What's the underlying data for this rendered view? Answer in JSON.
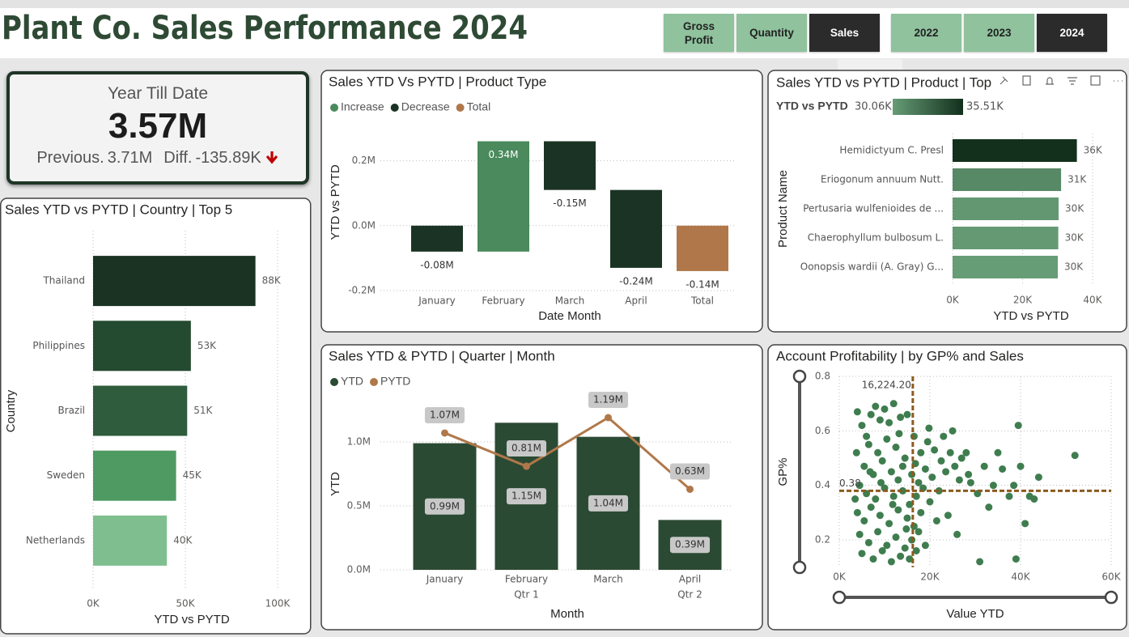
{
  "header": {
    "title": "Plant Co. Sales Performance 2024"
  },
  "slicer_colors": {
    "selected": "#2b2b2b",
    "unselected": "#8fc29d"
  },
  "slicers": [
    {
      "items": [
        {
          "label": "Gross Profit",
          "selected": false
        },
        {
          "label": "Quantity",
          "selected": false
        },
        {
          "label": "Sales",
          "selected": true
        }
      ]
    },
    {
      "items": [
        {
          "label": "2022",
          "selected": false
        },
        {
          "label": "2023",
          "selected": false
        },
        {
          "label": "2024",
          "selected": true
        }
      ]
    }
  ],
  "kpi": {
    "title": "Year Till Date",
    "value": "3.57M",
    "previous_label": "Previous.",
    "previous": "3.71M",
    "diff_label": "Diff.",
    "diff": "-135.89K"
  },
  "chart_data": [
    {
      "type": "hbar",
      "title": "Sales YTD vs PYTD | Country | Top 5",
      "categories": [
        "Thailand",
        "Philippines",
        "Brazil",
        "Sweden",
        "Netherlands"
      ],
      "values": [
        88000,
        53000,
        51000,
        45000,
        40000
      ],
      "value_labels": [
        "88K",
        "53K",
        "51K",
        "45K",
        "40K"
      ],
      "colors": [
        "#1a3322",
        "#244a30",
        "#2f5c3c",
        "#4e9a62",
        "#7fbf8f"
      ],
      "value_label_colors": [
        "#333333",
        "#333333",
        "#333333",
        "#4e8a5e",
        "#7fbf8f"
      ],
      "xlim": [
        0,
        100000
      ],
      "xticks": [
        {
          "value": 0,
          "label": "0K"
        },
        {
          "value": 50000,
          "label": "50K"
        },
        {
          "value": 100000,
          "label": "100K"
        }
      ],
      "xlabel": "YTD vs PYTD",
      "ylabel": "Country",
      "grid": true
    },
    {
      "type": "waterfall",
      "title": "Sales YTD Vs PYTD | Product Type",
      "legend": [
        {
          "name": "Increase",
          "color": "#4a8a5c"
        },
        {
          "name": "Decrease",
          "color": "#1b3324"
        },
        {
          "name": "Total",
          "color": "#b0784a"
        }
      ],
      "categories": [
        "January",
        "February",
        "March",
        "April",
        "Total"
      ],
      "values": [
        -80000,
        340000,
        -150000,
        -240000,
        -140000
      ],
      "value_labels": [
        "-0.08M",
        "0.34M",
        "-0.15M",
        "-0.24M",
        "-0.14M"
      ],
      "is_total": [
        false,
        false,
        false,
        false,
        true
      ],
      "ylim": [
        -230000,
        300000
      ],
      "yticks": [
        {
          "value": -200000,
          "label": "-0.2M"
        },
        {
          "value": 0,
          "label": "0.0M"
        },
        {
          "value": 200000,
          "label": "0.2M"
        }
      ],
      "xlabel": "Date Month",
      "ylabel": "YTD vs PYTD",
      "grid": true
    },
    {
      "type": "hbar",
      "title": "Sales YTD vs PYTD | Product | Top",
      "color_scale": {
        "label": "YTD vs PYTD",
        "min": 30060,
        "max": 35510,
        "min_label": "30.06K",
        "max_label": "35.51K",
        "colors": [
          "#669c76",
          "#12301c"
        ]
      },
      "categories": [
        "Hemidictyum C. Presl",
        "Eriogonum annuum Nutt.",
        "Pertusaria wulfenioides de ...",
        "Chaerophyllum bulbosum L.",
        "Oonopsis wardii (A. Gray) G..."
      ],
      "values": [
        35510,
        31000,
        30300,
        30200,
        30060
      ],
      "value_labels": [
        "36K",
        "31K",
        "30K",
        "30K",
        "30K"
      ],
      "value_label_colors": [
        "#333333",
        "#333333",
        "#333333",
        "#4e8a5e",
        "#4e8a5e"
      ],
      "xlim": [
        0,
        40000
      ],
      "xticks": [
        {
          "value": 0,
          "label": "0K"
        },
        {
          "value": 20000,
          "label": "20K"
        },
        {
          "value": 40000,
          "label": "40K"
        }
      ],
      "xlabel": "YTD vs PYTD",
      "ylabel": "Product Name",
      "grid": true
    },
    {
      "type": "combo",
      "title": "Sales YTD & PYTD | Quarter | Month",
      "categories": [
        "January",
        "February",
        "March",
        "April"
      ],
      "groups": [
        "Qtr 1",
        "Qtr 1",
        "Qtr 1",
        "Qtr 2"
      ],
      "series": [
        {
          "name": "YTD",
          "kind": "bar",
          "color": "#2b4a33",
          "values": [
            990000,
            1150000,
            1040000,
            390000
          ],
          "value_labels": [
            "0.99M",
            "1.15M",
            "1.04M",
            "0.39M"
          ]
        },
        {
          "name": "PYTD",
          "kind": "line",
          "color": "#b0784a",
          "values": [
            1070000,
            810000,
            1190000,
            630000
          ],
          "value_labels": [
            "1.07M",
            "0.81M",
            "1.19M",
            "0.63M"
          ]
        }
      ],
      "ylim": [
        0,
        1250000
      ],
      "yticks": [
        {
          "value": 0,
          "label": "0.0M"
        },
        {
          "value": 500000,
          "label": "0.5M"
        },
        {
          "value": 1000000,
          "label": "1.0M"
        }
      ],
      "xlabel": "Month",
      "ylabel": "YTD",
      "grid": true
    },
    {
      "type": "scatter",
      "title": "Account Profitability | by GP% and Sales",
      "color": "#3f7d4f",
      "x": [
        4000,
        5000,
        6000,
        7000,
        8000,
        9000,
        10000,
        11000,
        12000,
        13500,
        15000,
        6500,
        8500,
        10500,
        12500,
        14500,
        16500,
        18000,
        19500,
        21000,
        22500,
        5500,
        7500,
        9500,
        11500,
        13000,
        14000,
        16000,
        17500,
        19000,
        20500,
        4500,
        6000,
        8000,
        10000,
        12000,
        14000,
        15500,
        17000,
        18500,
        20000,
        4000,
        5500,
        7000,
        9000,
        11000,
        13000,
        15000,
        16500,
        18000,
        21500,
        4500,
        6500,
        8500,
        10500,
        12500,
        14500,
        16000,
        17500,
        19000,
        5000,
        7500,
        9500,
        11500,
        13500,
        15500,
        17000,
        3500,
        3800,
        6800,
        9200,
        11800,
        14800,
        16800,
        13200,
        19800,
        23000,
        24500,
        25500,
        26500,
        27000,
        28000,
        29000,
        30500,
        32000,
        33000,
        35000,
        31000,
        36000,
        37500,
        38500,
        39500,
        40000,
        41000,
        42000,
        43000,
        44000,
        39000,
        52000,
        24000,
        26000,
        22000,
        23500,
        25000,
        28500,
        34000
      ],
      "values": [
        0.67,
        0.62,
        0.58,
        0.66,
        0.69,
        0.64,
        0.68,
        0.63,
        0.7,
        0.65,
        0.66,
        0.55,
        0.52,
        0.57,
        0.54,
        0.5,
        0.58,
        0.52,
        0.56,
        0.53,
        0.49,
        0.47,
        0.44,
        0.49,
        0.45,
        0.42,
        0.47,
        0.44,
        0.41,
        0.46,
        0.43,
        0.4,
        0.37,
        0.35,
        0.39,
        0.36,
        0.38,
        0.33,
        0.36,
        0.39,
        0.34,
        0.3,
        0.27,
        0.32,
        0.29,
        0.26,
        0.31,
        0.28,
        0.25,
        0.3,
        0.27,
        0.22,
        0.19,
        0.23,
        0.18,
        0.21,
        0.17,
        0.2,
        0.23,
        0.18,
        0.15,
        0.13,
        0.16,
        0.12,
        0.14,
        0.13,
        0.16,
        0.35,
        0.52,
        0.45,
        0.41,
        0.33,
        0.24,
        0.48,
        0.59,
        0.61,
        0.58,
        0.52,
        0.47,
        0.42,
        0.5,
        0.52,
        0.41,
        0.37,
        0.47,
        0.32,
        0.52,
        0.12,
        0.46,
        0.36,
        0.4,
        0.62,
        0.47,
        0.26,
        0.36,
        0.35,
        0.43,
        0.13,
        0.51,
        0.29,
        0.22,
        0.38,
        0.45,
        0.6,
        0.44,
        0.4
      ],
      "xlim": [
        0,
        60000
      ],
      "ylim": [
        0.1,
        0.8
      ],
      "xticks": [
        {
          "value": 0,
          "label": "0K"
        },
        {
          "value": 20000,
          "label": "20K"
        },
        {
          "value": 40000,
          "label": "40K"
        },
        {
          "value": 60000,
          "label": "60K"
        }
      ],
      "yticks": [
        0.2,
        0.4,
        0.6,
        0.8
      ],
      "reference_lines": [
        {
          "axis": "x",
          "value": 16224.2,
          "label": "16,224.20"
        },
        {
          "axis": "y",
          "value": 0.38,
          "label": "0.38"
        }
      ],
      "reference_color": "#8b5a1e",
      "xlabel": "Value YTD",
      "ylabel": "GP%",
      "grid": true
    }
  ]
}
